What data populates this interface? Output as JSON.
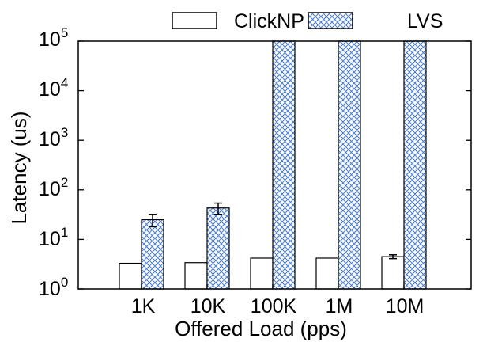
{
  "chart_data": {
    "type": "bar",
    "title": "",
    "xlabel": "Offered Load (pps)",
    "ylabel": "Latency (us)",
    "yscale": "log",
    "ylim": [
      1,
      100000
    ],
    "y_ticks": [
      {
        "base": "10",
        "exp": "0"
      },
      {
        "base": "10",
        "exp": "1"
      },
      {
        "base": "10",
        "exp": "2"
      },
      {
        "base": "10",
        "exp": "3"
      },
      {
        "base": "10",
        "exp": "4"
      },
      {
        "base": "10",
        "exp": "5"
      }
    ],
    "categories": [
      "1K",
      "10K",
      "100K",
      "1M",
      "10M"
    ],
    "series": [
      {
        "name": "ClickNP",
        "pattern": "solid-white",
        "values": [
          3.3,
          3.4,
          4.2,
          4.2,
          4.5
        ],
        "error": [
          null,
          null,
          null,
          null,
          0.4
        ]
      },
      {
        "name": "LVS",
        "pattern": "blue-crosshatch",
        "values": [
          25,
          43,
          100000,
          100000,
          100000
        ],
        "error": [
          7,
          11,
          null,
          null,
          null
        ]
      }
    ],
    "legend_position": "top",
    "grid": false,
    "colors": {
      "hatch": "#4d7fd0",
      "hatch_bg": "#ffffff",
      "edge": "#000000"
    }
  }
}
